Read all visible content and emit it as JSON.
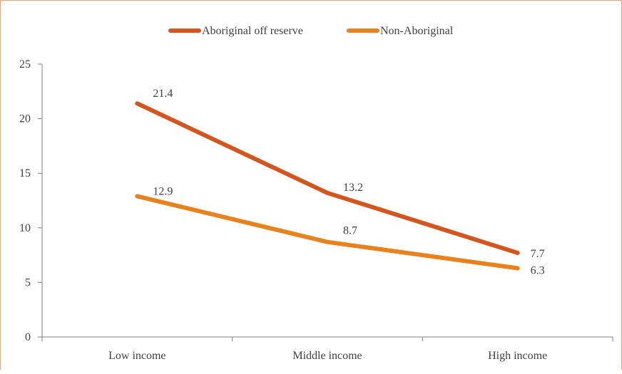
{
  "chart_data": {
    "type": "line",
    "categories": [
      "Low income",
      "Middle income",
      "High income"
    ],
    "series": [
      {
        "name": "Aboriginal off  reserve",
        "values": [
          21.4,
          13.2,
          7.7
        ],
        "labels": [
          "21.4",
          "13.2",
          "7.7"
        ],
        "color": "#d4561e"
      },
      {
        "name": "Non-Aboriginal",
        "values": [
          12.9,
          8.7,
          6.3
        ],
        "labels": [
          "12.9",
          "8.7",
          "6.3"
        ],
        "color": "#e8821e"
      }
    ],
    "ylim": [
      0,
      25
    ],
    "yticks": [
      "0",
      "5",
      "10",
      "15",
      "20",
      "25"
    ],
    "grid": false,
    "legend_position": "top-center"
  }
}
